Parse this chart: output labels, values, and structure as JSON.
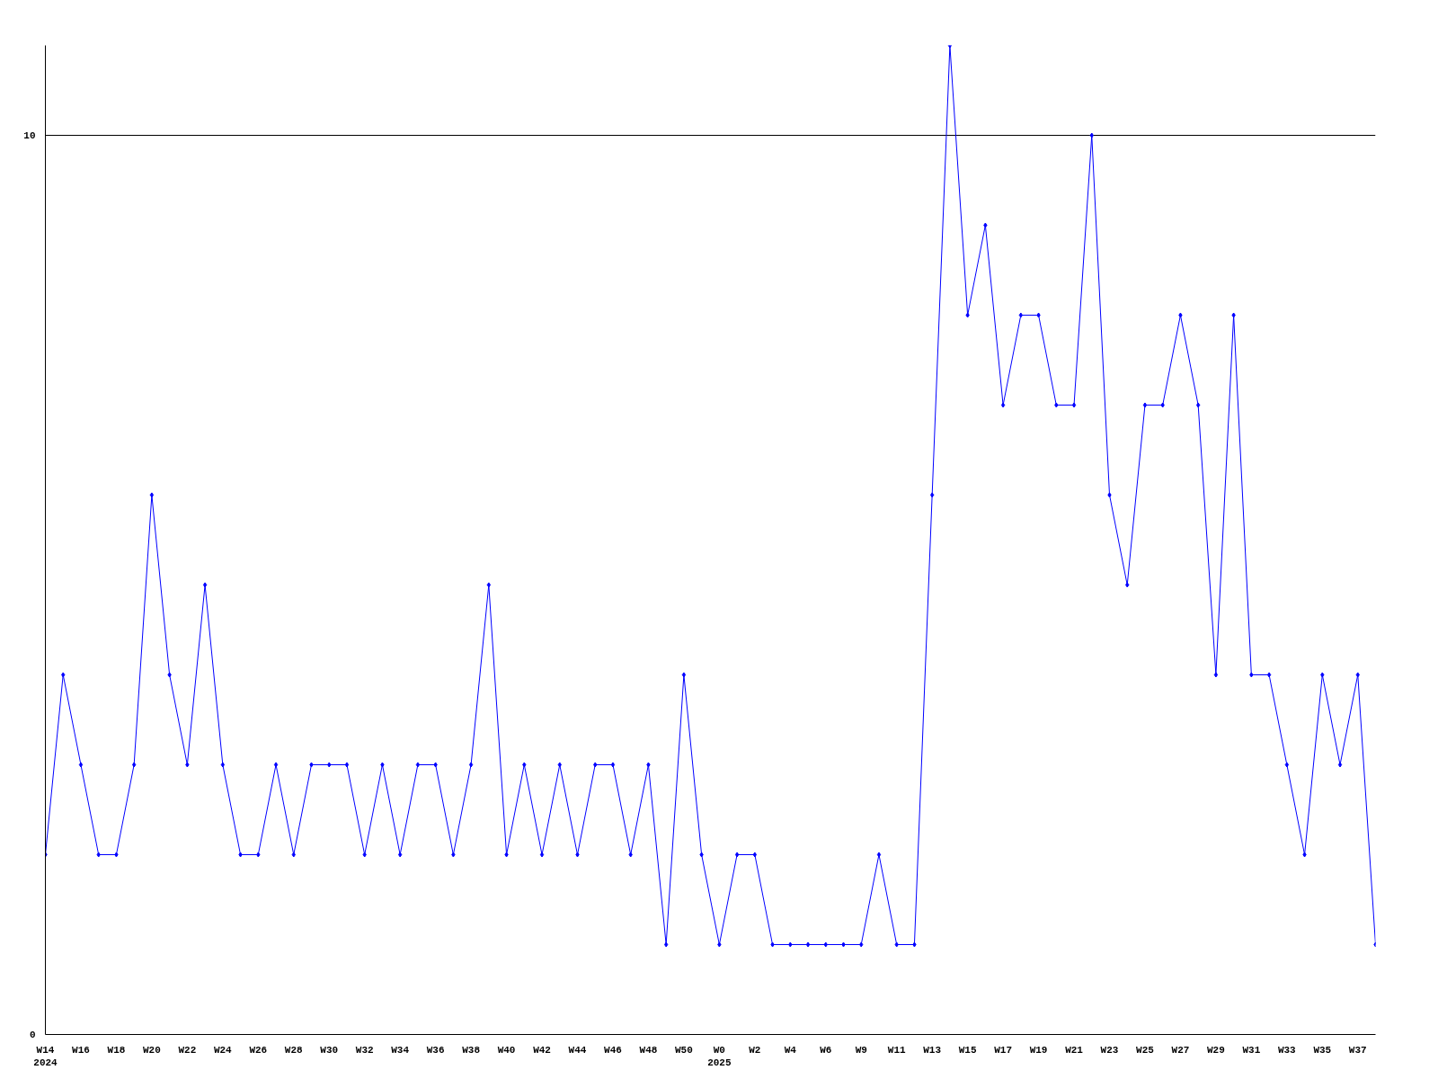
{
  "chart_data": {
    "type": "line",
    "categories": [
      "W14\n2024",
      null,
      "W16",
      null,
      "W18",
      null,
      "W20",
      null,
      "W22",
      null,
      "W24",
      null,
      "W26",
      null,
      "W28",
      null,
      "W30",
      null,
      "W32",
      null,
      "W34",
      null,
      "W36",
      null,
      "W38",
      null,
      "W40",
      null,
      "W42",
      null,
      "W44",
      null,
      "W46",
      null,
      "W48",
      null,
      "W50",
      null,
      "W0\n2025",
      null,
      "W2",
      null,
      "W4",
      null,
      "W6",
      null,
      "W9",
      null,
      "W11",
      null,
      "W13",
      null,
      "W15",
      null,
      "W17",
      null,
      "W19",
      null,
      "W21",
      null,
      "W23",
      null,
      "W25",
      null,
      "W27",
      null,
      "W29",
      null,
      "W31",
      null,
      "W33",
      null,
      "W35",
      null,
      "W37",
      null
    ],
    "series": [
      {
        "color": "#0000ff",
        "values": [
          2,
          4,
          3,
          2,
          2,
          3,
          6,
          4,
          3,
          5,
          3,
          2,
          2,
          3,
          2,
          3,
          3,
          3,
          2,
          3,
          2,
          3,
          3,
          2,
          3,
          5,
          2,
          3,
          2,
          3,
          2,
          3,
          3,
          2,
          3,
          1,
          4,
          2,
          1,
          2,
          2,
          1,
          1,
          1,
          1,
          1,
          1,
          2,
          1,
          1,
          6,
          11,
          8,
          9,
          7,
          8,
          8,
          7,
          7,
          10,
          6,
          5,
          7,
          7,
          8,
          7,
          4,
          8,
          4,
          4,
          3,
          2,
          4,
          3,
          4,
          1
        ]
      }
    ],
    "ylim": [
      0,
      11
    ],
    "yticks": [
      0,
      10
    ],
    "grid": "y",
    "marker": "diamond",
    "line_style": "solid"
  }
}
